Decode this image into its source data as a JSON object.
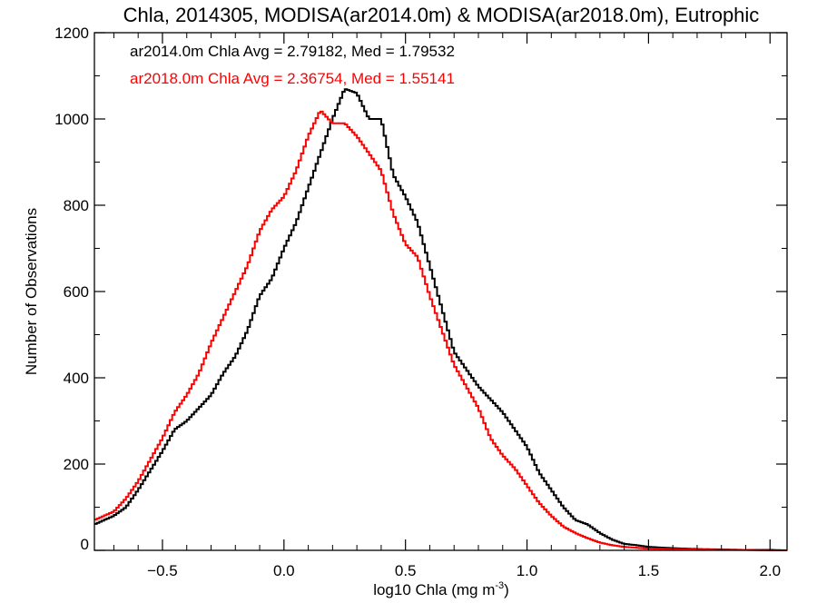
{
  "chart_data": {
    "type": "line",
    "title": "Chla, 2014305, MODISA(ar2014.0m) & MODISA(ar2018.0m), Eutrophic",
    "xlabel_main": "log10 Chla (mg m",
    "xlabel_exp": "-3",
    "xlabel_close": ")",
    "ylabel": "Number of Observations",
    "xlim": [
      -0.78,
      2.07
    ],
    "ylim": [
      0,
      1200
    ],
    "x_ticks": [
      -0.5,
      0.0,
      0.5,
      1.0,
      1.5,
      2.0
    ],
    "x_tick_labels": [
      "−0.5",
      "0.0",
      "0.5",
      "1.0",
      "1.5",
      "2.0"
    ],
    "y_ticks": [
      0,
      200,
      400,
      600,
      800,
      1000,
      1200
    ],
    "y_tick_labels": [
      "0",
      "200",
      "400",
      "600",
      "800",
      "1000",
      "1200"
    ],
    "grid": false,
    "legend_position": "top-left",
    "series": [
      {
        "name": "ar2014.0m",
        "color": "#000000",
        "stats_text": "ar2014.0m Chla Avg = 2.79182, Med = 1.79532",
        "x": [
          -0.78,
          -0.7,
          -0.65,
          -0.6,
          -0.55,
          -0.5,
          -0.45,
          -0.4,
          -0.35,
          -0.3,
          -0.25,
          -0.2,
          -0.15,
          -0.1,
          -0.05,
          0.0,
          0.05,
          0.1,
          0.15,
          0.2,
          0.25,
          0.3,
          0.35,
          0.4,
          0.45,
          0.5,
          0.55,
          0.6,
          0.65,
          0.7,
          0.75,
          0.8,
          0.85,
          0.9,
          0.95,
          1.0,
          1.05,
          1.1,
          1.15,
          1.2,
          1.25,
          1.3,
          1.35,
          1.4,
          1.45,
          1.5,
          1.6,
          1.7,
          1.8,
          1.9,
          2.0,
          2.07
        ],
        "y": [
          60,
          80,
          100,
          140,
          185,
          230,
          280,
          300,
          330,
          360,
          410,
          450,
          510,
          590,
          630,
          700,
          760,
          840,
          920,
          1000,
          1070,
          1060,
          1000,
          1000,
          870,
          820,
          760,
          660,
          560,
          460,
          420,
          380,
          350,
          320,
          280,
          240,
          180,
          140,
          100,
          70,
          60,
          40,
          25,
          15,
          12,
          8,
          5,
          3,
          2,
          1,
          1,
          0
        ]
      },
      {
        "name": "ar2018.0m",
        "color": "#ff0000",
        "stats_text": "ar2018.0m Chla Avg = 2.36754, Med = 1.55141",
        "x": [
          -0.78,
          -0.7,
          -0.65,
          -0.6,
          -0.55,
          -0.5,
          -0.45,
          -0.4,
          -0.35,
          -0.3,
          -0.25,
          -0.2,
          -0.15,
          -0.1,
          -0.05,
          0.0,
          0.05,
          0.1,
          0.15,
          0.2,
          0.25,
          0.3,
          0.35,
          0.4,
          0.45,
          0.5,
          0.55,
          0.6,
          0.65,
          0.7,
          0.75,
          0.8,
          0.85,
          0.9,
          0.95,
          1.0,
          1.05,
          1.1,
          1.15,
          1.2,
          1.25,
          1.3,
          1.35,
          1.4,
          1.45,
          1.5,
          1.6,
          1.7,
          1.8,
          1.9,
          2.0,
          2.07
        ],
        "y": [
          70,
          90,
          120,
          160,
          210,
          260,
          320,
          360,
          410,
          480,
          540,
          600,
          660,
          740,
          790,
          820,
          880,
          960,
          1020,
          990,
          990,
          960,
          920,
          880,
          780,
          710,
          680,
          590,
          510,
          430,
          380,
          330,
          260,
          220,
          190,
          150,
          110,
          80,
          55,
          40,
          28,
          18,
          12,
          8,
          6,
          4,
          3,
          2,
          1,
          1,
          0,
          0
        ]
      }
    ]
  }
}
